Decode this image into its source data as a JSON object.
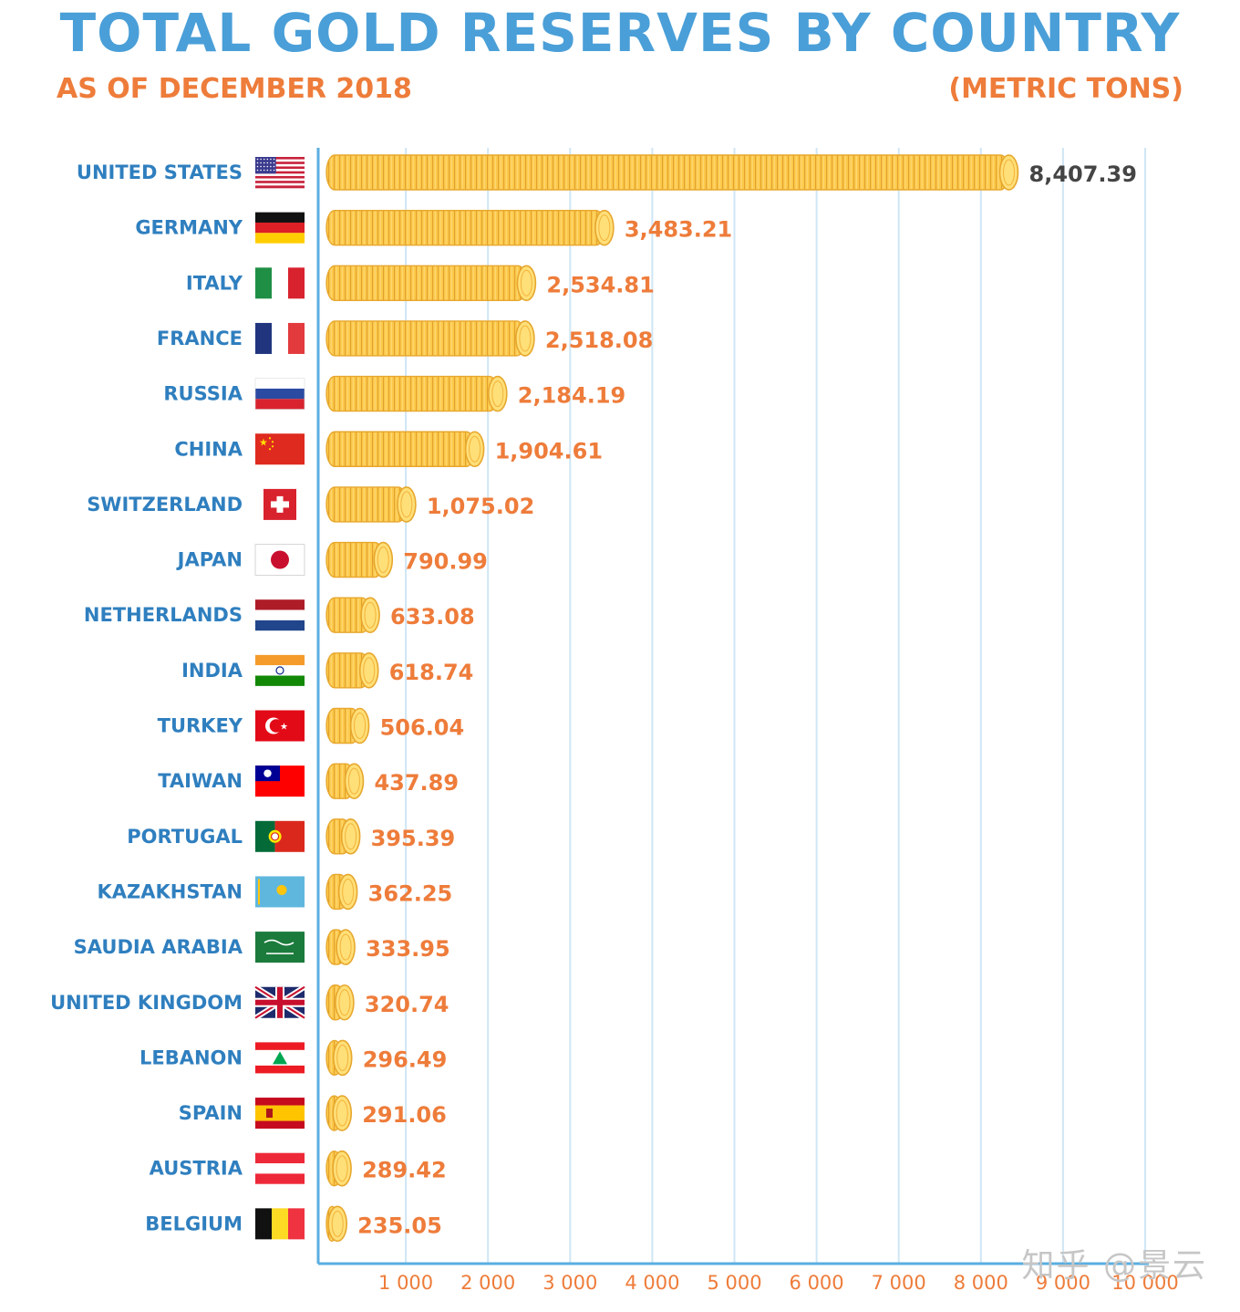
{
  "header": {
    "title": "TOTAL GOLD RESERVES BY COUNTRY",
    "subtitle": "AS OF DECEMBER 2018",
    "unit": "(METRIC TONS)"
  },
  "watermark": "知乎 @景云",
  "chart_data": {
    "type": "bar",
    "orientation": "horizontal",
    "title": "TOTAL GOLD RESERVES BY COUNTRY",
    "subtitle": "AS OF DECEMBER 2018",
    "unit": "(METRIC TONS)",
    "categories": [
      "UNITED STATES",
      "GERMANY",
      "ITALY",
      "FRANCE",
      "RUSSIA",
      "CHINA",
      "SWITZERLAND",
      "JAPAN",
      "NETHERLANDS",
      "INDIA",
      "TURKEY",
      "TAIWAN",
      "PORTUGAL",
      "KAZAKHSTAN",
      "SAUDIA ARABIA",
      "UNITED KINGDOM",
      "LEBANON",
      "SPAIN",
      "AUSTRIA",
      "BELGIUM"
    ],
    "values": [
      8407.39,
      3483.21,
      2534.81,
      2518.08,
      2184.19,
      1904.61,
      1075.02,
      790.99,
      633.08,
      618.74,
      506.04,
      437.89,
      395.39,
      362.25,
      333.95,
      320.74,
      296.49,
      291.06,
      289.42,
      235.05
    ],
    "value_labels": [
      "8,407.39",
      "3,483.21",
      "2,534.81",
      "2,518.08",
      "2,184.19",
      "1,904.61",
      "1,075.02",
      "790.99",
      "633.08",
      "618.74",
      "506.04",
      "437.89",
      "395.39",
      "362.25",
      "333.95",
      "320.74",
      "296.49",
      "291.06",
      "289.42",
      "235.05"
    ],
    "xlim": [
      0,
      10000
    ],
    "xticks": [
      1000,
      2000,
      3000,
      4000,
      5000,
      6000,
      7000,
      8000,
      9000,
      10000
    ],
    "xtick_labels": [
      "1 000",
      "2 000",
      "3 000",
      "4 000",
      "5 000",
      "6 000",
      "7 000",
      "8 000",
      "9 000",
      "10 000"
    ],
    "grid": true,
    "bar_style": "stacked gold coins",
    "flags": [
      "us-flag",
      "germany-flag",
      "italy-flag",
      "france-flag",
      "russia-flag",
      "china-flag",
      "switzerland-flag",
      "japan-flag",
      "netherlands-flag",
      "india-flag",
      "turkey-flag",
      "taiwan-flag",
      "portugal-flag",
      "kazakhstan-flag",
      "saudi-arabia-flag",
      "uk-flag",
      "lebanon-flag",
      "spain-flag",
      "austria-flag",
      "belgium-flag"
    ]
  },
  "colors": {
    "title": "#4a9fd8",
    "accent": "#ee7c3a",
    "country_label": "#2f7fbf",
    "top_value": "#444444",
    "coin_fill": "#fcc94a",
    "coin_edge": "#e7a72e",
    "coin_face": "#ffdf78",
    "gridline": "#cfe6f5",
    "axis": "#5aaee0"
  }
}
